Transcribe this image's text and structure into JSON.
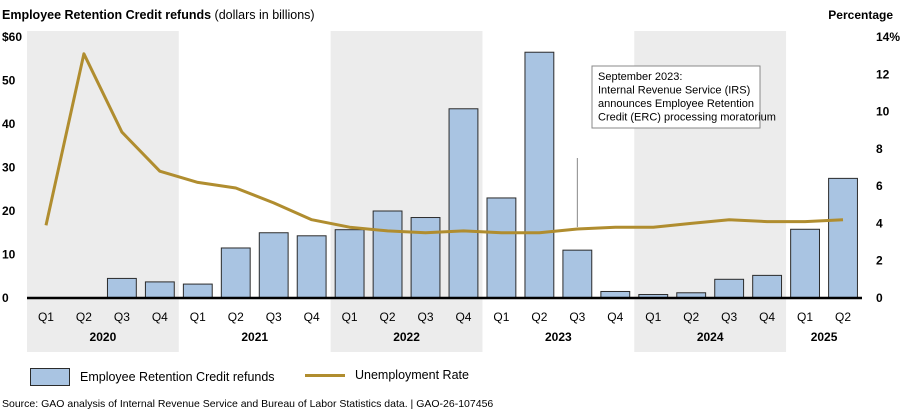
{
  "header": {
    "title_bold": "Employee Retention Credit refunds",
    "title_suffix": "(dollars in billions)",
    "right_axis_title": "Percentage"
  },
  "source": "Source: GAO analysis of Internal Revenue Service and Bureau of Labor Statistics data.  |  GAO-26-107456",
  "colors": {
    "bar": "#a9c4e2",
    "bar_stroke": "#2b2b2b",
    "line": "#b08d2f",
    "shade": "#ececec"
  },
  "chart_data": {
    "type": "bar",
    "categories": [
      "Q1",
      "Q2",
      "Q3",
      "Q4",
      "Q1",
      "Q2",
      "Q3",
      "Q4",
      "Q1",
      "Q2",
      "Q3",
      "Q4",
      "Q1",
      "Q2",
      "Q3",
      "Q4",
      "Q1",
      "Q2",
      "Q3",
      "Q4",
      "Q1",
      "Q2"
    ],
    "years": [
      {
        "label": "2020",
        "start": 0,
        "count": 4,
        "shaded": true
      },
      {
        "label": "2021",
        "start": 4,
        "count": 4,
        "shaded": false
      },
      {
        "label": "2022",
        "start": 8,
        "count": 4,
        "shaded": true
      },
      {
        "label": "2023",
        "start": 12,
        "count": 4,
        "shaded": false
      },
      {
        "label": "2024",
        "start": 16,
        "count": 4,
        "shaded": true
      },
      {
        "label": "2025",
        "start": 20,
        "count": 2,
        "shaded": false
      }
    ],
    "series": [
      {
        "name": "Employee Retention Credit refunds",
        "kind": "bar",
        "axis": "left",
        "values": [
          0,
          0,
          4.5,
          3.7,
          3.2,
          11.5,
          15,
          14.3,
          15.7,
          20,
          18.5,
          43.5,
          23,
          56.5,
          11,
          1.5,
          0.8,
          1.2,
          4.3,
          5.2,
          15.8,
          27.5
        ]
      },
      {
        "name": "Unemployment Rate",
        "kind": "line",
        "axis": "right",
        "values": [
          3.9,
          13.1,
          8.9,
          6.8,
          6.2,
          5.9,
          5.1,
          4.2,
          3.8,
          3.6,
          3.5,
          3.6,
          3.5,
          3.5,
          3.7,
          3.8,
          3.8,
          4.0,
          4.2,
          4.1,
          4.1,
          4.2
        ]
      }
    ],
    "y_left": {
      "ticks": [
        "$60",
        "50",
        "40",
        "30",
        "20",
        "10",
        "0"
      ],
      "tick_values": [
        60,
        50,
        40,
        30,
        20,
        10,
        0
      ],
      "ylim": [
        0,
        60
      ]
    },
    "y_right": {
      "ticks": [
        "14%",
        "12",
        "10",
        "8",
        "6",
        "4",
        "2",
        "0"
      ],
      "tick_values": [
        14,
        12,
        10,
        8,
        6,
        4,
        2,
        0
      ],
      "ylim": [
        0,
        14
      ]
    },
    "annotation": {
      "lines": [
        "September 2023:",
        "Internal Revenue Service (IRS)",
        "announces Employee Retention",
        "Credit (ERC) processing moratorium"
      ],
      "category_index": 14
    },
    "legend": {
      "placement": "bottom-left"
    }
  }
}
